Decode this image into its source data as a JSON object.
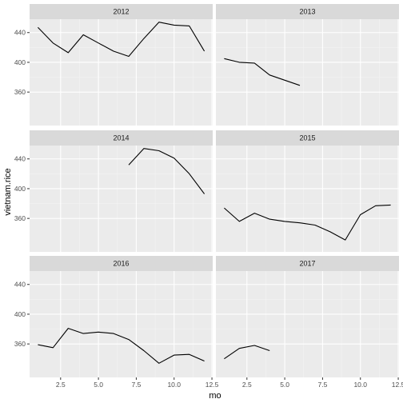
{
  "chart_data": {
    "type": "line",
    "xlabel": "mo",
    "ylabel": "vietnam.rice",
    "xlim": [
      0.45,
      12.55
    ],
    "ylim": [
      315,
      458
    ],
    "x_ticks": [
      2.5,
      5.0,
      7.5,
      10.0,
      12.5
    ],
    "x_tick_labels": [
      "2.5",
      "5.0",
      "7.5",
      "10.0",
      "12.5"
    ],
    "y_ticks": [
      360,
      400,
      440
    ],
    "y_tick_labels": [
      "360",
      "400",
      "440"
    ],
    "grid": true,
    "panel_background": "#ebebeb",
    "strip_background": "#d9d9d9",
    "line_color": "#000000",
    "facets": [
      {
        "label": "2012",
        "x": [
          1,
          2,
          3,
          4,
          5,
          6,
          7,
          8,
          9,
          10,
          11,
          12
        ],
        "y": [
          447,
          426,
          413,
          437,
          426,
          415,
          408,
          432,
          454,
          450,
          449,
          415
        ]
      },
      {
        "label": "2013",
        "x": [
          1,
          2,
          3,
          4,
          5,
          6
        ],
        "y": [
          405,
          400,
          399,
          383,
          376,
          369
        ]
      },
      {
        "label": "2014",
        "x": [
          7,
          8,
          9,
          10,
          11,
          12
        ],
        "y": [
          432,
          454,
          451,
          441,
          420,
          393
        ]
      },
      {
        "label": "2015",
        "x": [
          1,
          2,
          3,
          4,
          5,
          6,
          7,
          8,
          9,
          10,
          11,
          12
        ],
        "y": [
          374,
          356,
          367,
          359,
          356,
          354,
          351,
          342,
          331,
          365,
          377,
          378
        ]
      },
      {
        "label": "2016",
        "x": [
          1,
          2,
          3,
          4,
          5,
          6,
          7,
          8,
          9,
          10,
          11,
          12
        ],
        "y": [
          359,
          355,
          381,
          374,
          376,
          374,
          366,
          351,
          334,
          345,
          346,
          337
        ]
      },
      {
        "label": "2017",
        "x": [
          1,
          2,
          3,
          4
        ],
        "y": [
          340,
          354,
          358,
          351
        ]
      }
    ]
  }
}
